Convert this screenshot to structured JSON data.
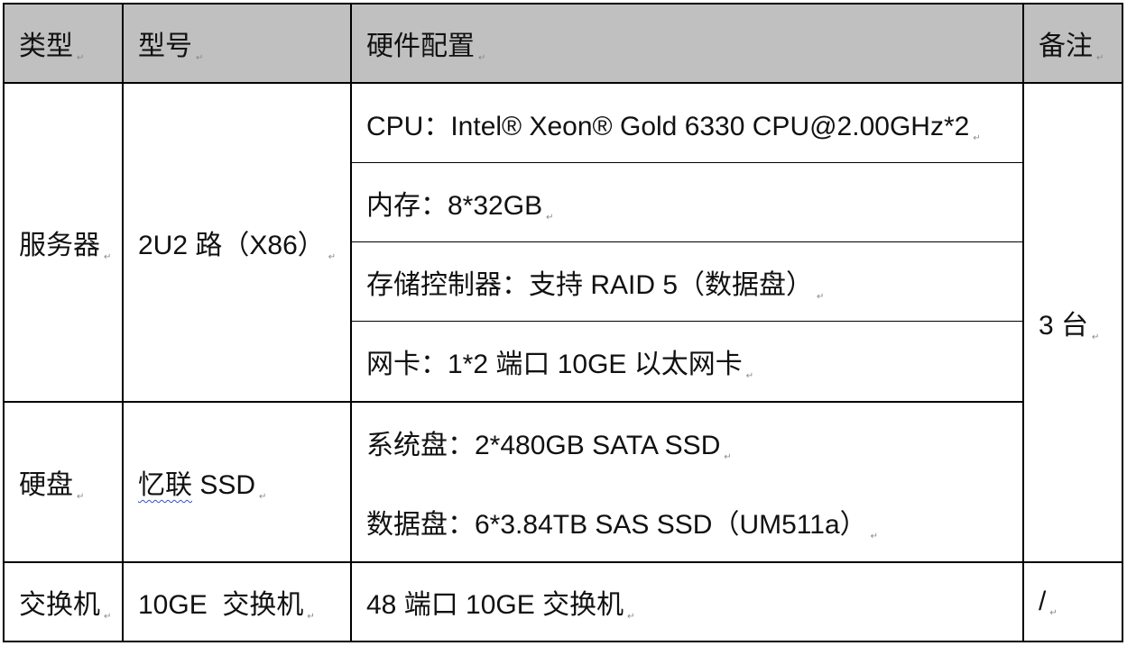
{
  "header": {
    "type": "类型",
    "model": "型号",
    "config": "硬件配置",
    "note": "备注"
  },
  "server": {
    "type": "服务器",
    "model": "2U2 路（X86）",
    "config": [
      "CPU：Intel® Xeon® Gold 6330 CPU@2.00GHz*2",
      "内存：8*32GB",
      "存储控制器：支持 RAID 5（数据盘）",
      "网卡：1*2 端口 10GE 以太网卡"
    ],
    "note": "3 台"
  },
  "disk": {
    "type": "硬盘",
    "model_brand": "忆联",
    "model_rest": " SSD",
    "config": [
      "系统盘：2*480GB SATA SSD",
      "数据盘：6*3.84TB SAS SSD（UM511a）"
    ]
  },
  "switch": {
    "type": "交换机",
    "model": "10GE  交换机",
    "config": "48 端口 10GE 交换机",
    "note": "/"
  }
}
